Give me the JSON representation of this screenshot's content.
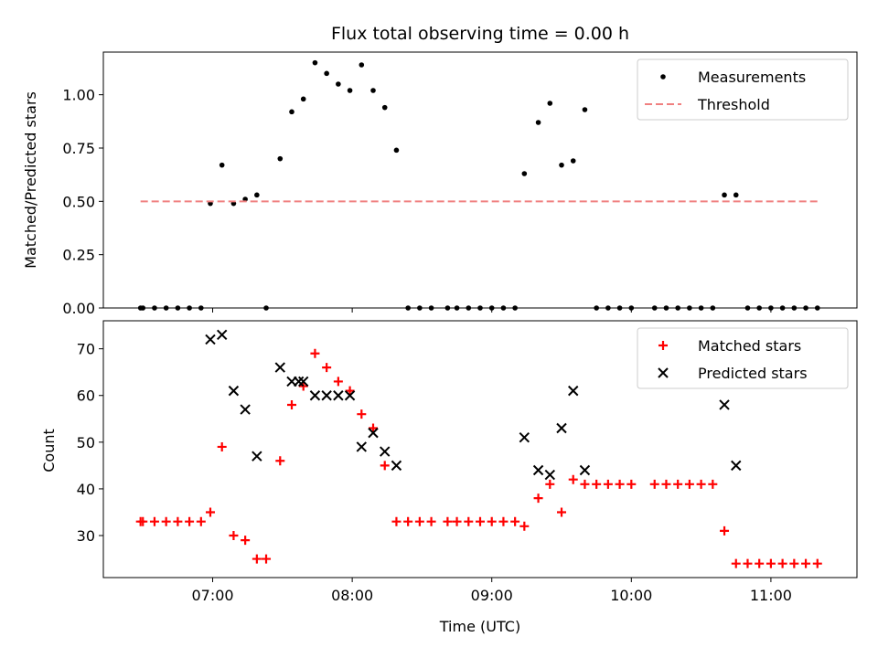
{
  "chart_data": [
    {
      "type": "scatter",
      "title": "Flux total observing time = 0.00 h",
      "xlabel": "",
      "ylabel": "Matched/Predicted stars",
      "xlim": [
        "06:13",
        "11:37"
      ],
      "ylim": [
        0,
        1.2
      ],
      "yticks": [
        "0.00",
        "0.25",
        "0.50",
        "0.75",
        "1.00"
      ],
      "xticks": [
        "07:00",
        "08:00",
        "09:00",
        "10:00",
        "11:00"
      ],
      "legend_position": "top-right",
      "series": [
        {
          "name": "Measurements",
          "color": "#000000",
          "marker": "dot",
          "points": [
            [
              "06:29",
              0
            ],
            [
              "06:30",
              0
            ],
            [
              "06:35",
              0
            ],
            [
              "06:40",
              0
            ],
            [
              "06:45",
              0
            ],
            [
              "06:50",
              0
            ],
            [
              "06:55",
              0
            ],
            [
              "06:59",
              0.49
            ],
            [
              "07:04",
              0.67
            ],
            [
              "07:09",
              0.49
            ],
            [
              "07:14",
              0.51
            ],
            [
              "07:19",
              0.53
            ],
            [
              "07:23",
              0
            ],
            [
              "07:29",
              0.7
            ],
            [
              "07:34",
              0.92
            ],
            [
              "07:39",
              0.98
            ],
            [
              "07:44",
              1.15
            ],
            [
              "07:49",
              1.1
            ],
            [
              "07:54",
              1.05
            ],
            [
              "07:59",
              1.02
            ],
            [
              "08:04",
              1.14
            ],
            [
              "08:09",
              1.02
            ],
            [
              "08:14",
              0.94
            ],
            [
              "08:19",
              0.74
            ],
            [
              "08:24",
              0
            ],
            [
              "08:29",
              0
            ],
            [
              "08:34",
              0
            ],
            [
              "08:41",
              0
            ],
            [
              "08:45",
              0
            ],
            [
              "08:50",
              0
            ],
            [
              "08:55",
              0
            ],
            [
              "09:00",
              0
            ],
            [
              "09:05",
              0
            ],
            [
              "09:10",
              0
            ],
            [
              "09:14",
              0.63
            ],
            [
              "09:20",
              0.87
            ],
            [
              "09:25",
              0.96
            ],
            [
              "09:30",
              0.67
            ],
            [
              "09:35",
              0.69
            ],
            [
              "09:40",
              0.93
            ],
            [
              "09:45",
              0
            ],
            [
              "09:50",
              0
            ],
            [
              "09:55",
              0
            ],
            [
              "10:00",
              0
            ],
            [
              "10:10",
              0
            ],
            [
              "10:15",
              0
            ],
            [
              "10:20",
              0
            ],
            [
              "10:25",
              0
            ],
            [
              "10:30",
              0
            ],
            [
              "10:35",
              0
            ],
            [
              "10:40",
              0.53
            ],
            [
              "10:45",
              0.53
            ],
            [
              "10:50",
              0
            ],
            [
              "10:55",
              0
            ],
            [
              "11:00",
              0
            ],
            [
              "11:05",
              0
            ],
            [
              "11:10",
              0
            ],
            [
              "11:15",
              0
            ],
            [
              "11:20",
              0
            ]
          ]
        },
        {
          "name": "Threshold",
          "color": "#f08080",
          "style": "dashed",
          "points": [
            [
              "06:29",
              0.5
            ],
            [
              "11:20",
              0.5
            ]
          ]
        }
      ]
    },
    {
      "type": "scatter",
      "title": "",
      "xlabel": "Time (UTC)",
      "ylabel": "Count",
      "xlim": [
        "06:13",
        "11:37"
      ],
      "ylim": [
        21,
        76
      ],
      "yticks": [
        "30",
        "40",
        "50",
        "60",
        "70"
      ],
      "xticks": [
        "07:00",
        "08:00",
        "09:00",
        "10:00",
        "11:00"
      ],
      "legend_position": "top-right",
      "series": [
        {
          "name": "Matched stars",
          "color": "#ff0000",
          "marker": "plus",
          "points": [
            [
              "06:29",
              33
            ],
            [
              "06:30",
              33
            ],
            [
              "06:35",
              33
            ],
            [
              "06:40",
              33
            ],
            [
              "06:45",
              33
            ],
            [
              "06:50",
              33
            ],
            [
              "06:55",
              33
            ],
            [
              "06:59",
              35
            ],
            [
              "07:04",
              49
            ],
            [
              "07:09",
              30
            ],
            [
              "07:14",
              29
            ],
            [
              "07:19",
              25
            ],
            [
              "07:23",
              25
            ],
            [
              "07:29",
              46
            ],
            [
              "07:34",
              58
            ],
            [
              "07:39",
              62
            ],
            [
              "07:44",
              69
            ],
            [
              "07:49",
              66
            ],
            [
              "07:54",
              63
            ],
            [
              "07:59",
              61
            ],
            [
              "08:04",
              56
            ],
            [
              "08:09",
              53
            ],
            [
              "08:14",
              45
            ],
            [
              "08:19",
              33
            ],
            [
              "08:24",
              33
            ],
            [
              "08:29",
              33
            ],
            [
              "08:34",
              33
            ],
            [
              "08:41",
              33
            ],
            [
              "08:45",
              33
            ],
            [
              "08:50",
              33
            ],
            [
              "08:55",
              33
            ],
            [
              "09:00",
              33
            ],
            [
              "09:05",
              33
            ],
            [
              "09:10",
              33
            ],
            [
              "09:14",
              32
            ],
            [
              "09:20",
              38
            ],
            [
              "09:25",
              41
            ],
            [
              "09:30",
              35
            ],
            [
              "09:35",
              42
            ],
            [
              "09:40",
              41
            ],
            [
              "09:45",
              41
            ],
            [
              "09:50",
              41
            ],
            [
              "09:55",
              41
            ],
            [
              "10:00",
              41
            ],
            [
              "10:10",
              41
            ],
            [
              "10:15",
              41
            ],
            [
              "10:20",
              41
            ],
            [
              "10:25",
              41
            ],
            [
              "10:30",
              41
            ],
            [
              "10:35",
              41
            ],
            [
              "10:40",
              31
            ],
            [
              "10:45",
              24
            ],
            [
              "10:50",
              24
            ],
            [
              "10:55",
              24
            ],
            [
              "11:00",
              24
            ],
            [
              "11:05",
              24
            ],
            [
              "11:10",
              24
            ],
            [
              "11:15",
              24
            ],
            [
              "11:20",
              24
            ]
          ]
        },
        {
          "name": "Predicted stars",
          "color": "#000000",
          "marker": "x",
          "points": [
            [
              "06:59",
              72
            ],
            [
              "07:04",
              73
            ],
            [
              "07:09",
              61
            ],
            [
              "07:14",
              57
            ],
            [
              "07:19",
              47
            ],
            [
              "07:29",
              66
            ],
            [
              "07:34",
              63
            ],
            [
              "07:37",
              63
            ],
            [
              "07:39",
              63
            ],
            [
              "07:44",
              60
            ],
            [
              "07:49",
              60
            ],
            [
              "07:54",
              60
            ],
            [
              "07:59",
              60
            ],
            [
              "08:04",
              49
            ],
            [
              "08:09",
              52
            ],
            [
              "08:14",
              48
            ],
            [
              "08:19",
              45
            ],
            [
              "09:14",
              51
            ],
            [
              "09:20",
              44
            ],
            [
              "09:25",
              43
            ],
            [
              "09:30",
              53
            ],
            [
              "09:35",
              61
            ],
            [
              "09:40",
              44
            ],
            [
              "10:40",
              58
            ],
            [
              "10:45",
              45
            ]
          ]
        }
      ]
    }
  ]
}
